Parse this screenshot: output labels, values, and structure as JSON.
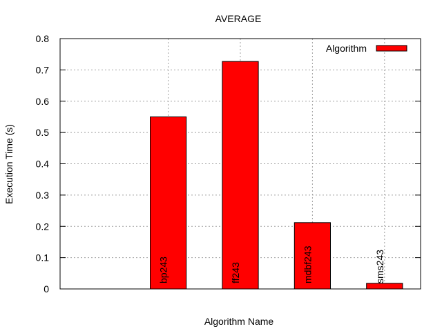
{
  "chart_data": {
    "type": "bar",
    "title": "AVERAGE",
    "xlabel": "Algorithm Name",
    "ylabel": "Execution Time (s)",
    "categories": [
      "bp243",
      "ff243",
      "mdbf243",
      "sms243"
    ],
    "series": [
      {
        "name": "Algorithm",
        "values": [
          0.55,
          0.727,
          0.212,
          0.018
        ]
      }
    ],
    "ylim": [
      0,
      0.8
    ],
    "yticks": [
      "0",
      "0.1",
      "0.2",
      "0.3",
      "0.4",
      "0.5",
      "0.6",
      "0.7",
      "0.8"
    ],
    "grid": true,
    "legend_position": "top-right",
    "bar_color": "#ff0000",
    "bar_outline_color": "#000000",
    "grid_color": "#a0a0a0"
  }
}
